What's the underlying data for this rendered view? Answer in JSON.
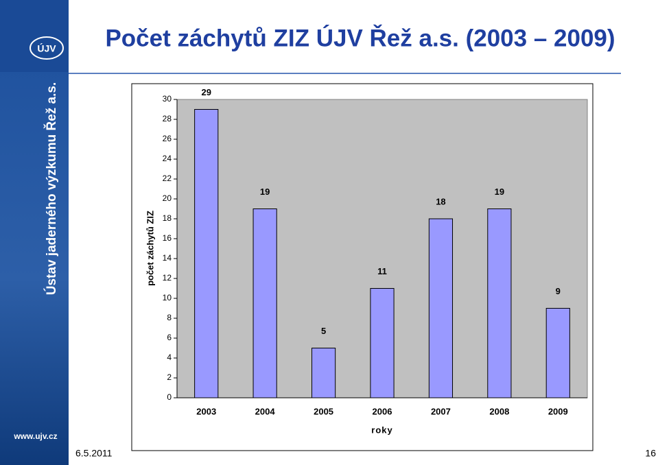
{
  "sidebar": {
    "logo": "ÚJV",
    "org": "Ústav jaderného výzkumu Řež a.s.",
    "web": "www.ujv.cz"
  },
  "footer": {
    "date": "6.5.2011",
    "page": "16"
  },
  "chart_data": {
    "type": "bar",
    "title": "Počet záchytů ZIZ ÚJV Řež a.s. (2003 – 2009)",
    "categories": [
      "2003",
      "2004",
      "2005",
      "2006",
      "2007",
      "2008",
      "2009"
    ],
    "values": [
      29,
      19,
      5,
      11,
      18,
      19,
      9
    ],
    "color": "#9999ff",
    "x_label": "roky",
    "y_label": "počet záchytů ZIZ",
    "ylim": [
      0,
      30
    ],
    "yticks": [
      0,
      2,
      4,
      6,
      8,
      10,
      12,
      14,
      16,
      18,
      20,
      22,
      24,
      26,
      28,
      30
    ],
    "grid": false
  }
}
